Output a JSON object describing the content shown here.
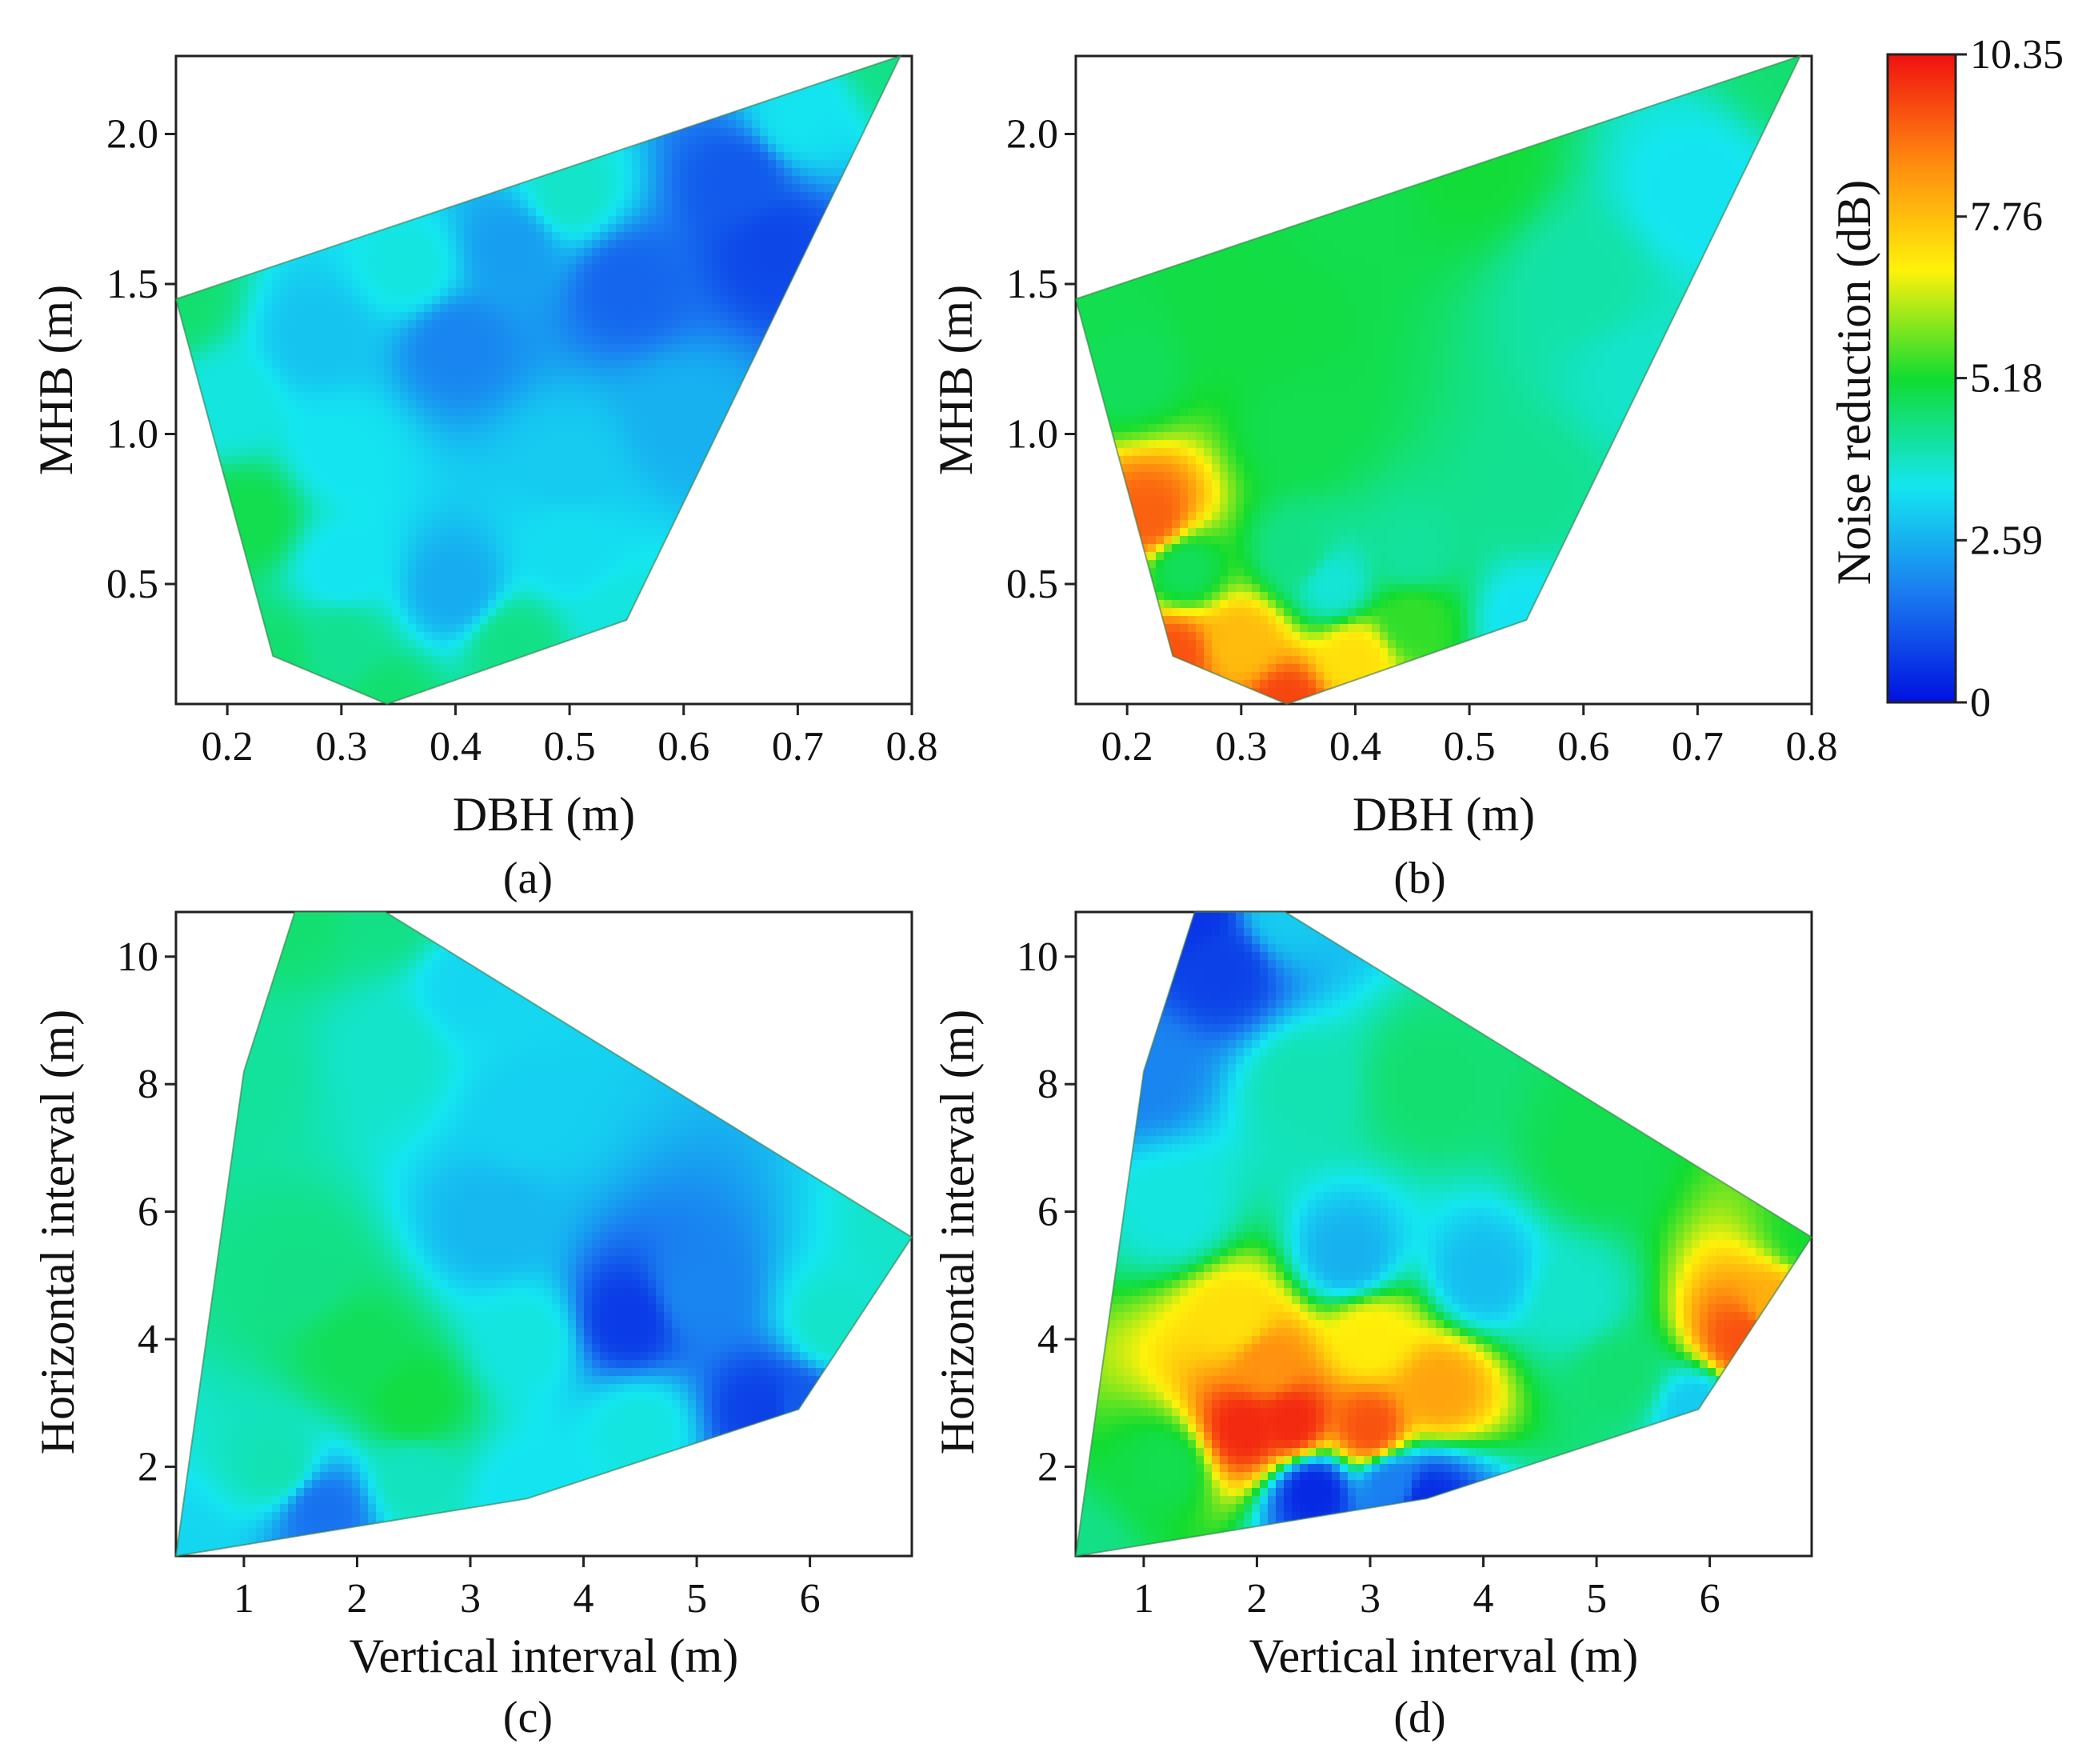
{
  "chart_data": [
    {
      "type": "heatmap",
      "panel": "(a)",
      "xlabel": "DBH (m)",
      "ylabel": "MHB (m)",
      "xlim": [
        0.155,
        0.8
      ],
      "ylim": [
        0.1,
        2.26
      ],
      "xticks": [
        "0.2",
        "0.3",
        "0.4",
        "0.5",
        "0.6",
        "0.7",
        "0.8"
      ],
      "xtick_values": [
        0.2,
        0.3,
        0.4,
        0.5,
        0.6,
        0.7,
        0.8
      ],
      "yticks": [
        "0.5",
        "1.0",
        "1.5",
        "2.0"
      ],
      "ytick_values": [
        0.5,
        1.0,
        1.5,
        2.0
      ],
      "hull": [
        [
          0.155,
          1.45
        ],
        [
          0.79,
          2.26
        ],
        [
          0.55,
          0.38
        ],
        [
          0.34,
          0.1
        ],
        [
          0.24,
          0.26
        ]
      ],
      "samples": [
        [
          0.155,
          1.45,
          4.6
        ],
        [
          0.79,
          2.26,
          4.4
        ],
        [
          0.55,
          0.38,
          3.6
        ],
        [
          0.34,
          0.1,
          4.6
        ],
        [
          0.24,
          0.26,
          4.6
        ],
        [
          0.28,
          1.32,
          2.9
        ],
        [
          0.4,
          1.3,
          1.9
        ],
        [
          0.55,
          1.5,
          1.4
        ],
        [
          0.68,
          1.62,
          0.9
        ],
        [
          0.65,
          1.85,
          1.2
        ],
        [
          0.45,
          1.62,
          2.3
        ],
        [
          0.36,
          1.55,
          3.6
        ],
        [
          0.5,
          1.8,
          3.8
        ],
        [
          0.6,
          1.05,
          2.6
        ],
        [
          0.5,
          0.9,
          3.0
        ],
        [
          0.3,
          0.95,
          3.4
        ],
        [
          0.22,
          0.72,
          4.9
        ],
        [
          0.4,
          0.48,
          2.5
        ],
        [
          0.3,
          0.55,
          3.4
        ],
        [
          0.3,
          0.3,
          4.3
        ],
        [
          0.45,
          0.3,
          4.4
        ],
        [
          0.7,
          2.05,
          3.4
        ],
        [
          0.2,
          1.1,
          3.6
        ],
        [
          0.5,
          0.62,
          3.3
        ]
      ]
    },
    {
      "type": "heatmap",
      "panel": "(b)",
      "xlabel": "DBH (m)",
      "ylabel": "MHB (m)",
      "xlim": [
        0.155,
        0.8
      ],
      "ylim": [
        0.1,
        2.26
      ],
      "xticks": [
        "0.2",
        "0.3",
        "0.4",
        "0.5",
        "0.6",
        "0.7",
        "0.8"
      ],
      "xtick_values": [
        0.2,
        0.3,
        0.4,
        0.5,
        0.6,
        0.7,
        0.8
      ],
      "yticks": [
        "0.5",
        "1.0",
        "1.5",
        "2.0"
      ],
      "ytick_values": [
        0.5,
        1.0,
        1.5,
        2.0
      ],
      "hull": [
        [
          0.155,
          1.45
        ],
        [
          0.79,
          2.26
        ],
        [
          0.55,
          0.38
        ],
        [
          0.34,
          0.1
        ],
        [
          0.24,
          0.26
        ]
      ],
      "samples": [
        [
          0.155,
          1.45,
          4.9
        ],
        [
          0.79,
          2.26,
          4.6
        ],
        [
          0.55,
          0.38,
          3.4
        ],
        [
          0.34,
          0.1,
          9.6
        ],
        [
          0.24,
          0.26,
          9.4
        ],
        [
          0.35,
          1.0,
          4.9
        ],
        [
          0.3,
          1.4,
          5.0
        ],
        [
          0.4,
          1.8,
          4.9
        ],
        [
          0.6,
          1.5,
          4.1
        ],
        [
          0.65,
          1.2,
          3.8
        ],
        [
          0.7,
          1.8,
          3.4
        ],
        [
          0.55,
          0.8,
          4.3
        ],
        [
          0.45,
          0.6,
          4.2
        ],
        [
          0.38,
          0.5,
          3.7
        ],
        [
          0.22,
          0.72,
          9.2
        ],
        [
          0.25,
          0.55,
          4.8
        ],
        [
          0.3,
          0.3,
          7.8
        ],
        [
          0.4,
          0.25,
          7.2
        ],
        [
          0.45,
          0.38,
          5.4
        ],
        [
          0.2,
          1.2,
          4.8
        ],
        [
          0.5,
          1.9,
          5.1
        ],
        [
          0.35,
          0.6,
          4.4
        ]
      ]
    },
    {
      "type": "heatmap",
      "panel": "(c)",
      "xlabel": "Vertical interval (m)",
      "ylabel": "Horizontal interval (m)",
      "xlim": [
        0.4,
        6.9
      ],
      "ylim": [
        0.6,
        10.7
      ],
      "xticks": [
        "1",
        "2",
        "3",
        "4",
        "5",
        "6"
      ],
      "xtick_values": [
        1,
        2,
        3,
        4,
        5,
        6
      ],
      "yticks": [
        "2",
        "4",
        "6",
        "8",
        "10"
      ],
      "ytick_values": [
        2,
        4,
        6,
        8,
        10
      ],
      "hull": [
        [
          0.4,
          0.6
        ],
        [
          1.0,
          8.2
        ],
        [
          1.45,
          10.7
        ],
        [
          2.25,
          10.7
        ],
        [
          6.9,
          5.6
        ],
        [
          5.9,
          2.9
        ],
        [
          3.5,
          1.5
        ]
      ],
      "samples": [
        [
          0.4,
          0.6,
          3.2
        ],
        [
          1.0,
          8.2,
          4.2
        ],
        [
          1.45,
          10.7,
          4.6
        ],
        [
          2.25,
          10.7,
          4.4
        ],
        [
          6.9,
          5.6,
          3.8
        ],
        [
          5.9,
          2.9,
          1.2
        ],
        [
          3.5,
          1.5,
          3.4
        ],
        [
          2.0,
          3.8,
          4.8
        ],
        [
          2.5,
          3.0,
          5.0
        ],
        [
          1.5,
          5.0,
          4.4
        ],
        [
          3.2,
          5.8,
          2.7
        ],
        [
          4.4,
          4.3,
          0.7
        ],
        [
          5.0,
          4.7,
          1.9
        ],
        [
          3.5,
          4.0,
          3.6
        ],
        [
          2.3,
          8.5,
          3.8
        ],
        [
          3.5,
          7.5,
          3.1
        ],
        [
          3.0,
          9.5,
          3.2
        ],
        [
          1.7,
          1.3,
          1.6
        ],
        [
          2.5,
          1.8,
          3.9
        ],
        [
          4.5,
          2.6,
          3.6
        ],
        [
          5.6,
          2.9,
          0.8
        ],
        [
          6.2,
          4.2,
          3.8
        ],
        [
          1.3,
          2.0,
          4.0
        ]
      ]
    },
    {
      "type": "heatmap",
      "panel": "(d)",
      "xlabel": "Vertical interval (m)",
      "ylabel": "Horizontal interval (m)",
      "xlim": [
        0.4,
        6.9
      ],
      "ylim": [
        0.6,
        10.7
      ],
      "xticks": [
        "1",
        "2",
        "3",
        "4",
        "5",
        "6"
      ],
      "xtick_values": [
        1,
        2,
        3,
        4,
        5,
        6
      ],
      "yticks": [
        "2",
        "4",
        "6",
        "8",
        "10"
      ],
      "ytick_values": [
        2,
        4,
        6,
        8,
        10
      ],
      "hull": [
        [
          0.4,
          0.6
        ],
        [
          1.0,
          8.2
        ],
        [
          1.45,
          10.7
        ],
        [
          2.25,
          10.7
        ],
        [
          6.9,
          5.6
        ],
        [
          5.9,
          2.9
        ],
        [
          3.5,
          1.5
        ]
      ],
      "samples": [
        [
          0.4,
          0.6,
          4.4
        ],
        [
          1.0,
          8.2,
          1.9
        ],
        [
          1.45,
          10.7,
          0.6
        ],
        [
          2.25,
          10.7,
          3.0
        ],
        [
          6.9,
          5.6,
          5.2
        ],
        [
          5.9,
          2.9,
          3.0
        ],
        [
          3.5,
          1.5,
          0.5
        ],
        [
          1.7,
          9.8,
          0.8
        ],
        [
          1.9,
          2.6,
          10.0
        ],
        [
          2.3,
          2.7,
          10.0
        ],
        [
          3.0,
          2.6,
          9.4
        ],
        [
          2.1,
          3.6,
          8.5
        ],
        [
          3.6,
          3.2,
          8.2
        ],
        [
          1.8,
          4.3,
          7.2
        ],
        [
          3.0,
          4.0,
          7.0
        ],
        [
          2.8,
          5.3,
          2.6
        ],
        [
          4.0,
          5.0,
          2.8
        ],
        [
          4.8,
          4.6,
          3.8
        ],
        [
          2.4,
          8.0,
          4.0
        ],
        [
          3.5,
          8.0,
          4.6
        ],
        [
          5.0,
          6.8,
          4.9
        ],
        [
          6.3,
          4.0,
          9.4
        ],
        [
          6.6,
          4.5,
          8.0
        ],
        [
          2.5,
          1.6,
          0.4
        ],
        [
          3.2,
          1.7,
          1.8
        ],
        [
          1.2,
          2.0,
          4.9
        ],
        [
          5.2,
          3.4,
          4.6
        ],
        [
          1.3,
          6.0,
          3.6
        ]
      ]
    }
  ],
  "colorbar": {
    "label": "Noise reduction (dB)",
    "ticks": [
      "10.35",
      "7.76",
      "5.18",
      "2.59",
      "0"
    ],
    "tick_values": [
      10.35,
      7.76,
      5.18,
      2.59,
      0
    ],
    "range": [
      0,
      10.35
    ],
    "colors": [
      "#0010e0",
      "#1a7af0",
      "#14e6f0",
      "#12dc30",
      "#fff20a",
      "#ff8a10",
      "#f01010"
    ]
  }
}
